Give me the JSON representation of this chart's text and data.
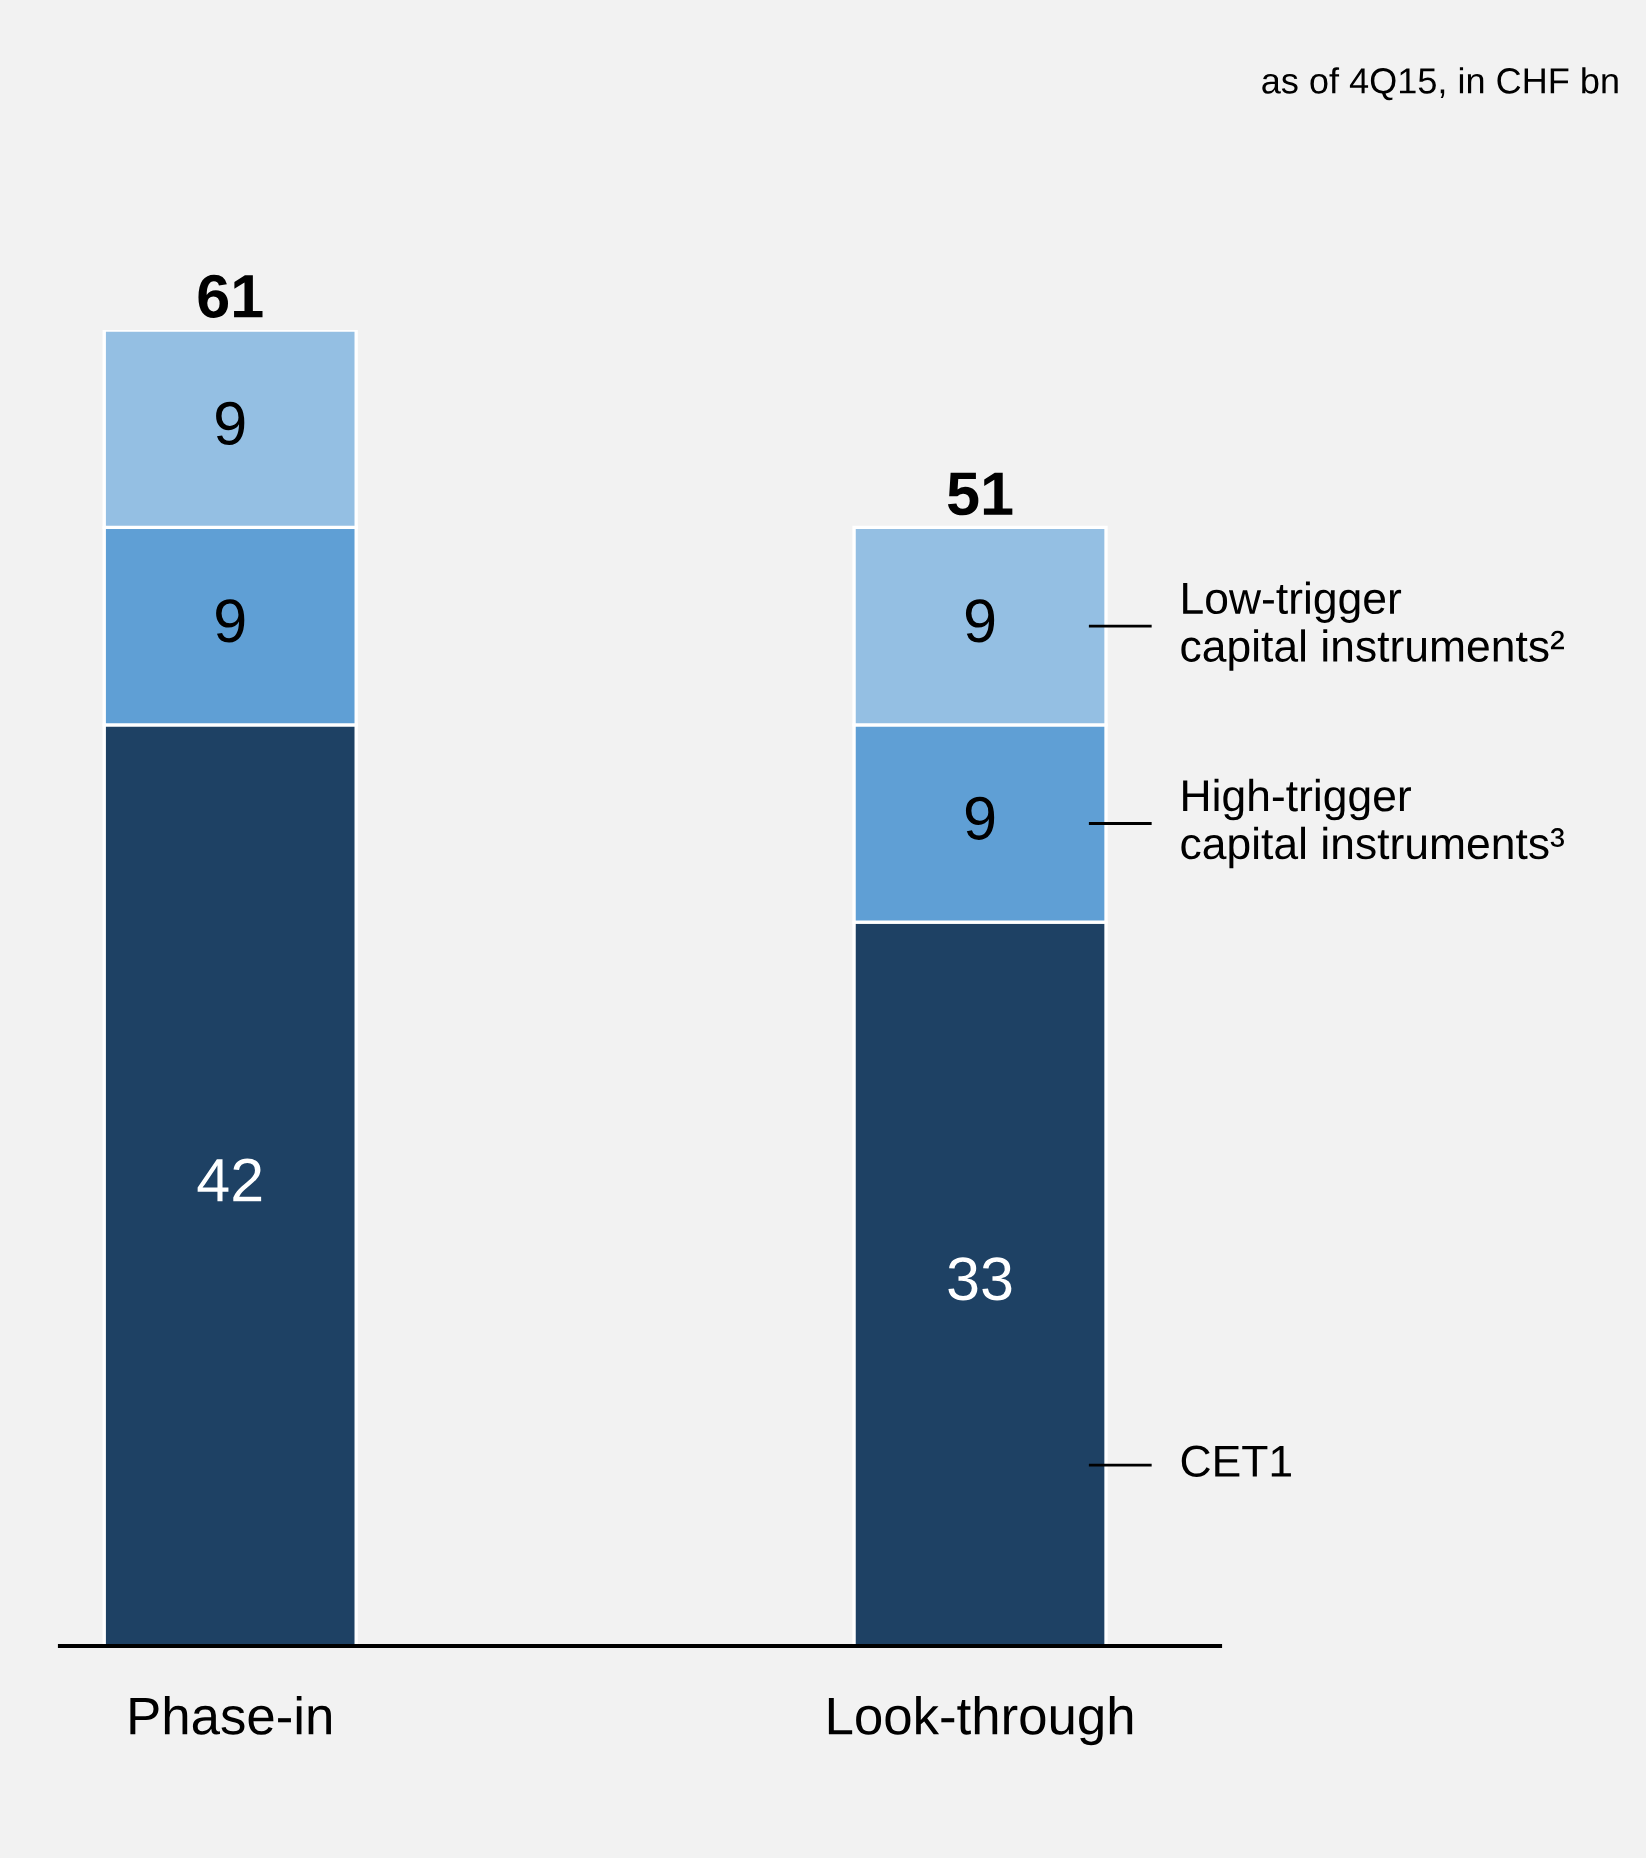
{
  "chart_data": {
    "type": "bar",
    "stacked": true,
    "subtitle": "as of 4Q15, in CHF bn",
    "categories": [
      "Phase-in",
      "Look-through"
    ],
    "series": [
      {
        "name": "CET1",
        "color": "#1e4164",
        "values": [
          42,
          33
        ]
      },
      {
        "name": "High-trigger\ncapital instruments³",
        "color": "#5f9fd5",
        "values": [
          9,
          9
        ]
      },
      {
        "name": "Low-trigger\ncapital instruments²",
        "color": "#94bfe3",
        "values": [
          9,
          9
        ]
      }
    ],
    "data_labels": true,
    "totals": [
      "61",
      "51"
    ],
    "grid": false,
    "legend": false
  }
}
